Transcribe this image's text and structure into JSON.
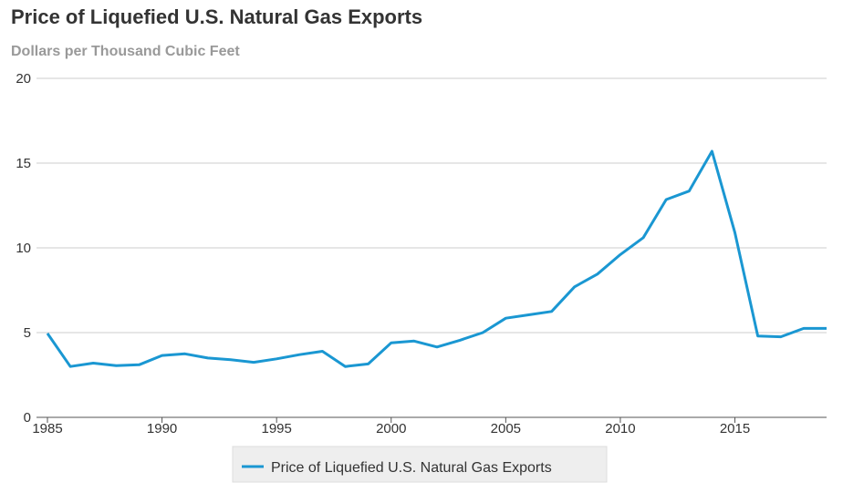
{
  "chart_data": {
    "type": "line",
    "title": "Price of Liquefied U.S. Natural Gas Exports",
    "ylabel": "Dollars per Thousand Cubic Feet",
    "xlabel": "",
    "ylim": [
      0,
      20
    ],
    "xlim": [
      1985,
      2019
    ],
    "yticks": [
      "0",
      "5",
      "10",
      "15",
      "20"
    ],
    "xticks": [
      "1985",
      "1990",
      "1995",
      "2000",
      "2005",
      "2010",
      "2015"
    ],
    "grid": true,
    "legend_position": "bottom-center",
    "series": [
      {
        "name": "Price of Liquefied U.S. Natural Gas Exports",
        "color": "#1a97d2",
        "x": [
          1985,
          1986,
          1987,
          1988,
          1989,
          1990,
          1991,
          1992,
          1993,
          1994,
          1995,
          1996,
          1997,
          1998,
          1999,
          2000,
          2001,
          2002,
          2003,
          2004,
          2005,
          2006,
          2007,
          2008,
          2009,
          2010,
          2011,
          2012,
          2013,
          2014,
          2015,
          2016,
          2017,
          2018,
          2019
        ],
        "values": [
          4.95,
          3.0,
          3.2,
          3.05,
          3.1,
          3.65,
          3.75,
          3.5,
          3.4,
          3.25,
          3.45,
          3.7,
          3.9,
          3.0,
          3.15,
          4.4,
          4.5,
          4.15,
          4.55,
          5.0,
          5.85,
          6.05,
          6.25,
          7.7,
          8.45,
          9.6,
          10.6,
          12.85,
          13.35,
          15.7,
          10.9,
          4.8,
          4.75,
          5.25,
          5.25
        ]
      }
    ]
  }
}
